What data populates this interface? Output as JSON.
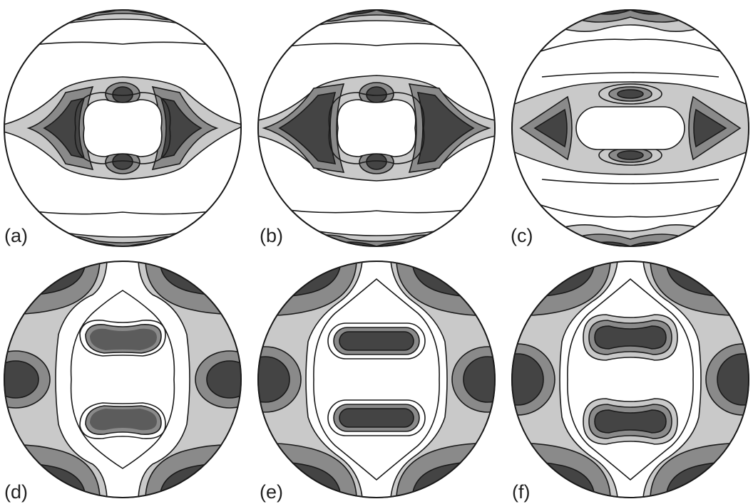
{
  "figure": {
    "panels": [
      {
        "id": "a",
        "label": "(a)"
      },
      {
        "id": "b",
        "label": "(b)"
      },
      {
        "id": "c",
        "label": "(c)"
      },
      {
        "id": "d",
        "label": "(d)"
      },
      {
        "id": "e",
        "label": "(e)"
      },
      {
        "id": "f",
        "label": "(f)"
      }
    ],
    "colors": {
      "white": "#ffffff",
      "light": "#c9c9c9",
      "mid": "#8a8a8a",
      "dark": "#444444",
      "line": "#1a1a1a"
    }
  }
}
